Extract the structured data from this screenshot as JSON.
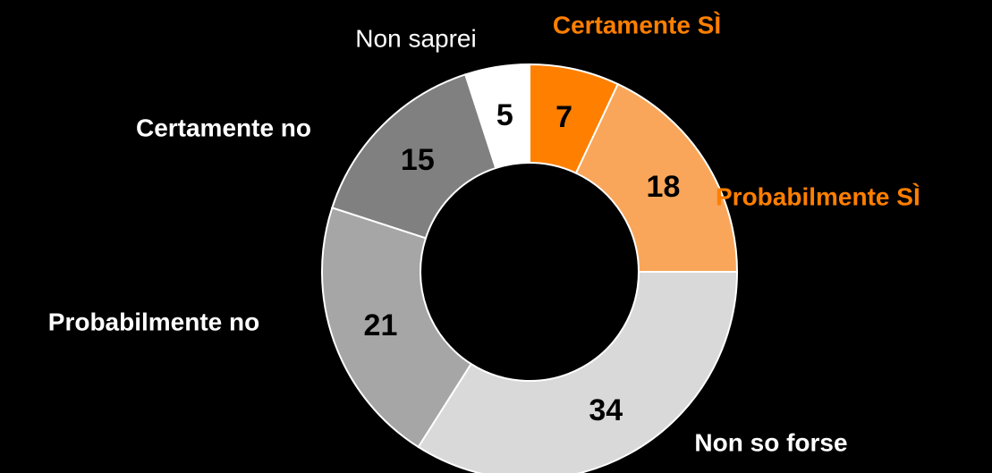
{
  "chart_data": {
    "type": "donut",
    "categories": [
      "Certamente SÌ",
      "Probabilmente SÌ",
      "Non so forse",
      "Probabilmente no",
      "Certamente no",
      "Non saprei"
    ],
    "values": [
      7,
      18,
      34,
      21,
      15,
      5
    ],
    "colors": [
      "#ff7f00",
      "#f9a65a",
      "#d9d9d9",
      "#a6a6a6",
      "#808080",
      "#ffffff"
    ],
    "label_colors": [
      "#ff7f00",
      "#ff7f00",
      "#ffffff",
      "#ffffff",
      "#ffffff",
      "#ffffff"
    ]
  }
}
